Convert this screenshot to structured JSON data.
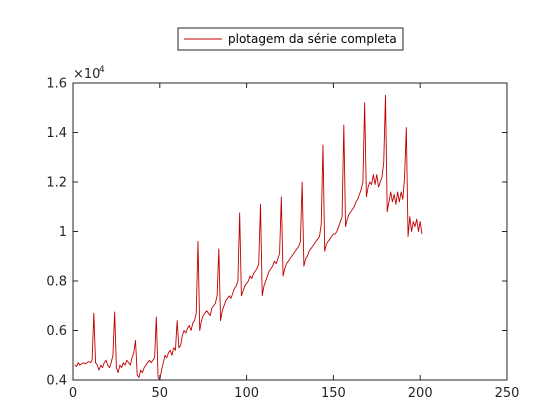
{
  "chart_data": {
    "type": "line",
    "title": "",
    "xlabel": "",
    "ylabel": "",
    "xlim": [
      0,
      250
    ],
    "ylim": [
      0.4,
      1.6
    ],
    "y_multiplier": "×10",
    "y_multiplier_exponent": "4",
    "x_ticks": [
      "0",
      "50",
      "100",
      "150",
      "200",
      "250"
    ],
    "x_tick_values": [
      0,
      50,
      100,
      150,
      200,
      250
    ],
    "y_ticks": [
      "0.4",
      "0.6",
      "0.8",
      "1",
      "1.2",
      "1.4",
      "1.6"
    ],
    "y_tick_values": [
      0.4,
      0.6,
      0.8,
      1.0,
      1.2,
      1.4,
      1.6
    ],
    "grid": false,
    "legend_position": "top-center",
    "series": [
      {
        "name": "plotagem da série completa",
        "color": "#c00000",
        "points": [
          [
            1,
            0.46
          ],
          [
            2,
            0.455
          ],
          [
            3,
            0.47
          ],
          [
            4,
            0.46
          ],
          [
            5,
            0.465
          ],
          [
            6,
            0.47
          ],
          [
            7,
            0.465
          ],
          [
            8,
            0.47
          ],
          [
            9,
            0.475
          ],
          [
            10,
            0.47
          ],
          [
            11,
            0.48
          ],
          [
            12,
            0.67
          ],
          [
            13,
            0.47
          ],
          [
            14,
            0.46
          ],
          [
            15,
            0.44
          ],
          [
            16,
            0.46
          ],
          [
            17,
            0.45
          ],
          [
            18,
            0.47
          ],
          [
            19,
            0.48
          ],
          [
            20,
            0.46
          ],
          [
            21,
            0.45
          ],
          [
            22,
            0.47
          ],
          [
            23,
            0.5
          ],
          [
            24,
            0.675
          ],
          [
            25,
            0.45
          ],
          [
            26,
            0.43
          ],
          [
            27,
            0.46
          ],
          [
            28,
            0.45
          ],
          [
            29,
            0.47
          ],
          [
            30,
            0.46
          ],
          [
            31,
            0.48
          ],
          [
            32,
            0.47
          ],
          [
            33,
            0.46
          ],
          [
            34,
            0.49
          ],
          [
            35,
            0.51
          ],
          [
            36,
            0.56
          ],
          [
            37,
            0.42
          ],
          [
            38,
            0.41
          ],
          [
            39,
            0.44
          ],
          [
            40,
            0.43
          ],
          [
            41,
            0.45
          ],
          [
            42,
            0.46
          ],
          [
            43,
            0.47
          ],
          [
            44,
            0.48
          ],
          [
            45,
            0.47
          ],
          [
            46,
            0.48
          ],
          [
            47,
            0.49
          ],
          [
            48,
            0.655
          ],
          [
            49,
            0.41
          ],
          [
            50,
            0.4
          ],
          [
            51,
            0.44
          ],
          [
            52,
            0.47
          ],
          [
            53,
            0.5
          ],
          [
            54,
            0.49
          ],
          [
            55,
            0.51
          ],
          [
            56,
            0.52
          ],
          [
            57,
            0.5
          ],
          [
            58,
            0.53
          ],
          [
            59,
            0.52
          ],
          [
            60,
            0.64
          ],
          [
            61,
            0.53
          ],
          [
            62,
            0.54
          ],
          [
            63,
            0.58
          ],
          [
            64,
            0.6
          ],
          [
            65,
            0.59
          ],
          [
            66,
            0.61
          ],
          [
            67,
            0.62
          ],
          [
            68,
            0.6
          ],
          [
            69,
            0.63
          ],
          [
            70,
            0.64
          ],
          [
            71,
            0.67
          ],
          [
            72,
            0.96
          ],
          [
            73,
            0.6
          ],
          [
            74,
            0.64
          ],
          [
            75,
            0.66
          ],
          [
            76,
            0.67
          ],
          [
            77,
            0.68
          ],
          [
            78,
            0.67
          ],
          [
            79,
            0.66
          ],
          [
            80,
            0.69
          ],
          [
            81,
            0.7
          ],
          [
            82,
            0.71
          ],
          [
            83,
            0.74
          ],
          [
            84,
            0.93
          ],
          [
            85,
            0.64
          ],
          [
            86,
            0.68
          ],
          [
            87,
            0.7
          ],
          [
            88,
            0.72
          ],
          [
            89,
            0.73
          ],
          [
            90,
            0.74
          ],
          [
            91,
            0.73
          ],
          [
            92,
            0.75
          ],
          [
            93,
            0.77
          ],
          [
            94,
            0.78
          ],
          [
            95,
            0.8
          ],
          [
            96,
            1.075
          ],
          [
            97,
            0.74
          ],
          [
            98,
            0.76
          ],
          [
            99,
            0.78
          ],
          [
            100,
            0.79
          ],
          [
            101,
            0.8
          ],
          [
            102,
            0.82
          ],
          [
            103,
            0.81
          ],
          [
            104,
            0.83
          ],
          [
            105,
            0.84
          ],
          [
            106,
            0.85
          ],
          [
            107,
            0.87
          ],
          [
            108,
            1.11
          ],
          [
            109,
            0.74
          ],
          [
            110,
            0.78
          ],
          [
            111,
            0.8
          ],
          [
            112,
            0.82
          ],
          [
            113,
            0.84
          ],
          [
            114,
            0.85
          ],
          [
            115,
            0.86
          ],
          [
            116,
            0.88
          ],
          [
            117,
            0.87
          ],
          [
            118,
            0.89
          ],
          [
            119,
            0.91
          ],
          [
            120,
            1.14
          ],
          [
            121,
            0.82
          ],
          [
            122,
            0.85
          ],
          [
            123,
            0.87
          ],
          [
            124,
            0.88
          ],
          [
            125,
            0.89
          ],
          [
            126,
            0.9
          ],
          [
            127,
            0.91
          ],
          [
            128,
            0.92
          ],
          [
            129,
            0.93
          ],
          [
            130,
            0.94
          ],
          [
            131,
            0.96
          ],
          [
            132,
            1.2
          ],
          [
            133,
            0.86
          ],
          [
            134,
            0.89
          ],
          [
            135,
            0.9
          ],
          [
            136,
            0.92
          ],
          [
            137,
            0.93
          ],
          [
            138,
            0.94
          ],
          [
            139,
            0.95
          ],
          [
            140,
            0.96
          ],
          [
            141,
            0.97
          ],
          [
            142,
            0.98
          ],
          [
            143,
            1.03
          ],
          [
            144,
            1.35
          ],
          [
            145,
            0.92
          ],
          [
            146,
            0.95
          ],
          [
            147,
            0.96
          ],
          [
            148,
            0.97
          ],
          [
            149,
            0.98
          ],
          [
            150,
            0.99
          ],
          [
            151,
            0.99
          ],
          [
            152,
            1.0
          ],
          [
            153,
            1.02
          ],
          [
            154,
            1.04
          ],
          [
            155,
            1.06
          ],
          [
            156,
            1.43
          ],
          [
            157,
            1.02
          ],
          [
            158,
            1.05
          ],
          [
            159,
            1.07
          ],
          [
            160,
            1.08
          ],
          [
            161,
            1.09
          ],
          [
            162,
            1.1
          ],
          [
            163,
            1.12
          ],
          [
            164,
            1.13
          ],
          [
            165,
            1.15
          ],
          [
            166,
            1.17
          ],
          [
            167,
            1.2
          ],
          [
            168,
            1.52
          ],
          [
            169,
            1.14
          ],
          [
            170,
            1.18
          ],
          [
            171,
            1.2
          ],
          [
            172,
            1.19
          ],
          [
            173,
            1.23
          ],
          [
            174,
            1.19
          ],
          [
            175,
            1.23
          ],
          [
            176,
            1.18
          ],
          [
            177,
            1.2
          ],
          [
            178,
            1.22
          ],
          [
            179,
            1.28
          ],
          [
            180,
            1.55
          ],
          [
            181,
            1.08
          ],
          [
            182,
            1.12
          ],
          [
            183,
            1.16
          ],
          [
            184,
            1.12
          ],
          [
            185,
            1.15
          ],
          [
            186,
            1.11
          ],
          [
            187,
            1.16
          ],
          [
            188,
            1.12
          ],
          [
            189,
            1.16
          ],
          [
            190,
            1.13
          ],
          [
            191,
            1.22
          ],
          [
            192,
            1.42
          ],
          [
            193,
            0.98
          ],
          [
            194,
            1.06
          ],
          [
            195,
            1.0
          ],
          [
            196,
            1.04
          ],
          [
            197,
            1.02
          ],
          [
            198,
            1.05
          ],
          [
            199,
            1.0
          ],
          [
            200,
            1.04
          ],
          [
            201,
            0.99
          ]
        ]
      }
    ]
  }
}
